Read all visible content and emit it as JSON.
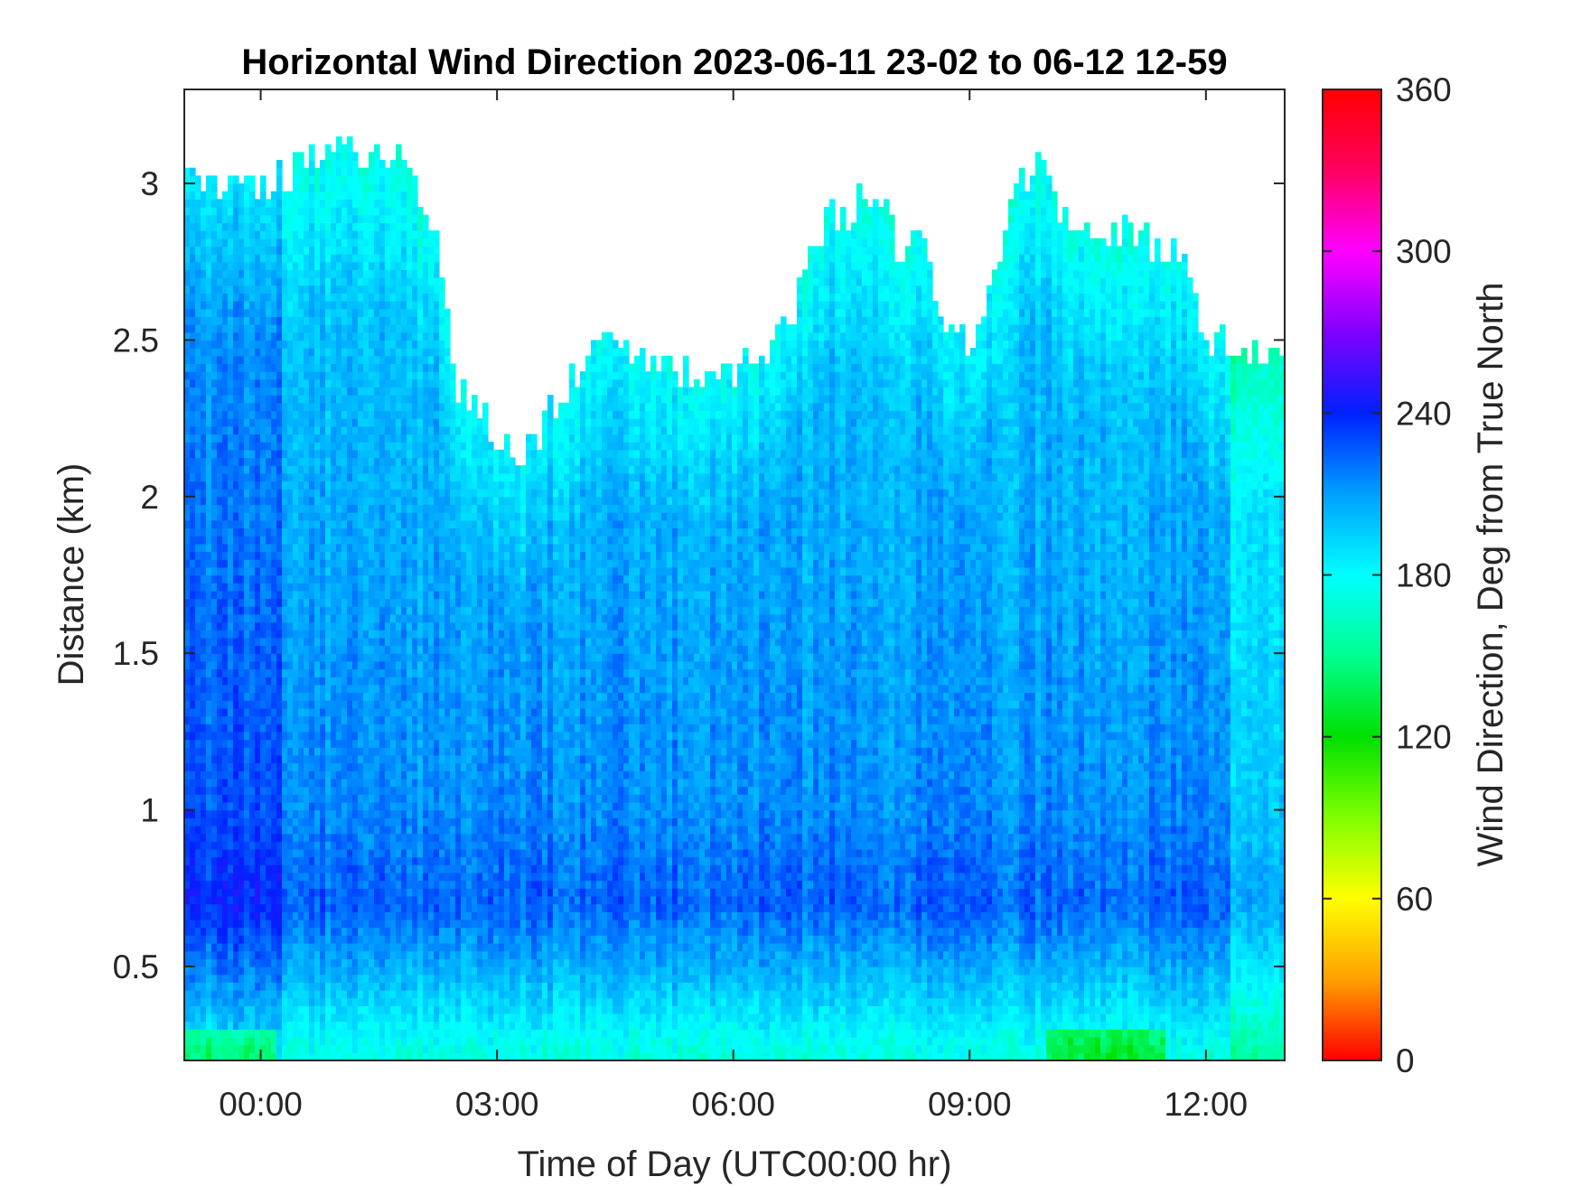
{
  "chart_data": {
    "type": "heatmap",
    "title": "Horizontal Wind Direction 2023-06-11 23-02 to 06-12 12-59",
    "xlabel": "Time of Day (UTC00:00 hr)",
    "ylabel": "Distance (km)",
    "xlim_hours": [
      -0.97,
      13.0
    ],
    "ylim": [
      0.2,
      3.3
    ],
    "x_tick_values": [
      0,
      3,
      6,
      9,
      12
    ],
    "x_tick_labels": [
      "00:00",
      "03:00",
      "06:00",
      "09:00",
      "12:00"
    ],
    "y_tick_values": [
      0.5,
      1,
      1.5,
      2,
      2.5,
      3
    ],
    "y_tick_labels": [
      "0.5",
      "1",
      "1.5",
      "2",
      "2.5",
      "3"
    ],
    "colorbar": {
      "label": "Wind Direction, Deg from True North",
      "range": [
        0,
        360
      ],
      "tick_values": [
        0,
        60,
        120,
        180,
        240,
        300,
        360
      ],
      "tick_labels": [
        "0",
        "60",
        "120",
        "180",
        "240",
        "300",
        "360"
      ],
      "colormap": [
        "#ff0000",
        "#ffa000",
        "#ffff00",
        "#80ff00",
        "#00e000",
        "#00ff90",
        "#00ffff",
        "#00a0ff",
        "#0020ff",
        "#8000ff",
        "#ff00ff",
        "#ff0060",
        "#ff0000"
      ]
    },
    "grid": false,
    "data_top_km": {
      "hours": [
        -0.97,
        -0.5,
        0.0,
        0.5,
        1.0,
        1.4,
        1.8,
        2.2,
        2.5,
        2.8,
        3.0,
        3.3,
        3.6,
        3.9,
        4.2,
        4.5,
        4.8,
        5.1,
        5.4,
        5.7,
        6.0,
        6.3,
        6.6,
        6.9,
        7.2,
        7.5,
        7.8,
        8.1,
        8.4,
        8.7,
        9.0,
        9.3,
        9.6,
        9.9,
        10.2,
        10.5,
        10.8,
        11.1,
        11.4,
        11.7,
        12.0,
        12.3,
        12.6,
        13.0
      ],
      "top_km": [
        3.05,
        3.0,
        3.0,
        3.05,
        3.1,
        3.1,
        3.05,
        2.85,
        2.35,
        2.25,
        2.2,
        2.1,
        2.25,
        2.35,
        2.45,
        2.55,
        2.45,
        2.4,
        2.4,
        2.35,
        2.4,
        2.45,
        2.5,
        2.7,
        2.9,
        2.9,
        3.0,
        2.8,
        2.8,
        2.5,
        2.5,
        2.7,
        3.0,
        3.05,
        2.9,
        2.8,
        2.85,
        2.85,
        2.8,
        2.8,
        2.5,
        2.5,
        2.45,
        2.45
      ]
    },
    "direction_bands_deg": [
      {
        "km": 0.2,
        "deg": 170
      },
      {
        "km": 0.45,
        "deg": 200
      },
      {
        "km": 0.7,
        "deg": 225
      },
      {
        "km": 1.0,
        "deg": 215
      },
      {
        "km": 1.5,
        "deg": 210
      },
      {
        "km": 2.0,
        "deg": 205
      },
      {
        "km": 2.5,
        "deg": 200
      },
      {
        "km": 3.0,
        "deg": 195
      }
    ]
  }
}
